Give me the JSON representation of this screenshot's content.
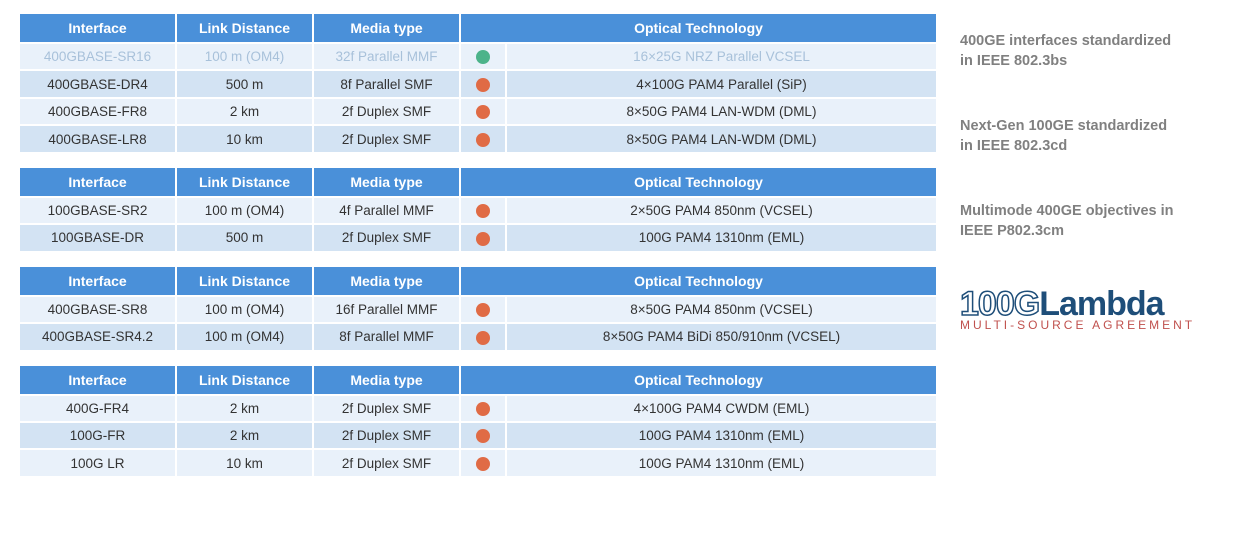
{
  "colors": {
    "header_bg": "#4a90d9",
    "header_fg": "#ffffff",
    "row_alt_a": "#e9f1fa",
    "row_alt_b": "#d3e3f3",
    "faded_text": "#a8c1da",
    "dot_green": "#4cb38a",
    "dot_orange": "#e06b45",
    "note_text": "#808080",
    "logo_outline": "#1e4e79",
    "logo_sub": "#c0504d"
  },
  "headers": {
    "interface": "Interface",
    "distance": "Link Distance",
    "media": "Media type",
    "tech": "Optical Technology"
  },
  "tables": [
    {
      "rows": [
        {
          "iface": "400GBASE-SR16",
          "dist": "100 m (OM4)",
          "media": "32f Parallel MMF",
          "dot": "#4cb38a",
          "tech": "16×25G NRZ Parallel VCSEL",
          "faded": true
        },
        {
          "iface": "400GBASE-DR4",
          "dist": "500 m",
          "media": "8f Parallel SMF",
          "dot": "#e06b45",
          "tech": "4×100G PAM4 Parallel (SiP)"
        },
        {
          "iface": "400GBASE-FR8",
          "dist": "2 km",
          "media": "2f Duplex SMF",
          "dot": "#e06b45",
          "tech": "8×50G PAM4 LAN-WDM (DML)"
        },
        {
          "iface": "400GBASE-LR8",
          "dist": "10 km",
          "media": "2f Duplex SMF",
          "dot": "#e06b45",
          "tech": "8×50G PAM4 LAN-WDM (DML)"
        }
      ]
    },
    {
      "rows": [
        {
          "iface": "100GBASE-SR2",
          "dist": "100 m (OM4)",
          "media": "4f Parallel MMF",
          "dot": "#e06b45",
          "tech": "2×50G PAM4 850nm (VCSEL)"
        },
        {
          "iface": "100GBASE-DR",
          "dist": "500 m",
          "media": "2f Duplex SMF",
          "dot": "#e06b45",
          "tech": "100G PAM4 1310nm (EML)"
        }
      ]
    },
    {
      "rows": [
        {
          "iface": "400GBASE-SR8",
          "dist": "100 m (OM4)",
          "media": "16f Parallel MMF",
          "dot": "#e06b45",
          "tech": "8×50G PAM4 850nm (VCSEL)"
        },
        {
          "iface": "400GBASE-SR4.2",
          "dist": "100 m (OM4)",
          "media": "8f Parallel MMF",
          "dot": "#e06b45",
          "tech": "8×50G PAM4 BiDi 850/910nm (VCSEL)"
        }
      ]
    },
    {
      "rows": [
        {
          "iface": "400G-FR4",
          "dist": "2 km",
          "media": "2f Duplex SMF",
          "dot": "#e06b45",
          "tech": "4×100G PAM4 CWDM (EML)"
        },
        {
          "iface": "100G-FR",
          "dist": "2 km",
          "media": "2f Duplex SMF",
          "dot": "#e06b45",
          "tech": "100G PAM4 1310nm (EML)"
        },
        {
          "iface": "100G LR",
          "dist": "10 km",
          "media": "2f Duplex SMF",
          "dot": "#e06b45",
          "tech": "100G PAM4 1310nm (EML)"
        }
      ]
    }
  ],
  "notes": [
    "400GE interfaces standardized in IEEE 802.3bs",
    "Next-Gen 100GE standardized in IEEE 802.3cd",
    "Multimode 400GE objectives in IEEE P802.3cm"
  ],
  "logo": {
    "part1": "100G",
    "part2": "Lambda",
    "sub": "MULTI-SOURCE AGREEMENT"
  }
}
